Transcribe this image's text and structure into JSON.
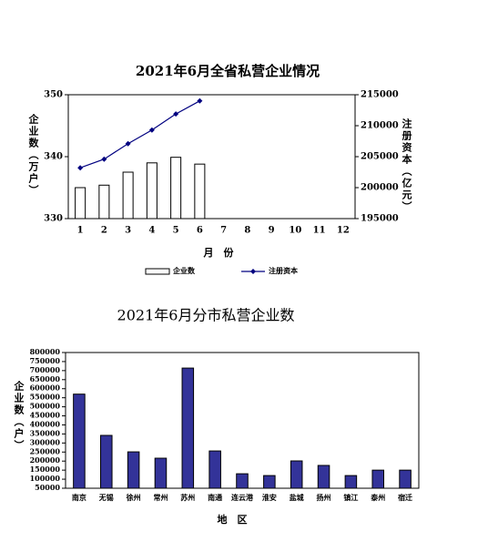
{
  "chart_data": [
    {
      "type": "combo",
      "title": "2021年6月全省私营企业情况",
      "categories": [
        "1",
        "2",
        "3",
        "4",
        "5",
        "6",
        "7",
        "8",
        "9",
        "10",
        "11",
        "12"
      ],
      "series": [
        {
          "name": "企业数",
          "type": "bar",
          "color": "#ffffff",
          "values": [
            335.0,
            335.4,
            337.5,
            339.0,
            339.9,
            338.8,
            null,
            null,
            null,
            null,
            null,
            null
          ]
        },
        {
          "name": "注册资本",
          "type": "line",
          "axis": "y2",
          "color": "#000080",
          "values": [
            203200,
            204600,
            207100,
            209300,
            211900,
            214000,
            null,
            null,
            null,
            null,
            null,
            null
          ]
        }
      ],
      "x_label": "月　份",
      "y_label": "企业数（万户）",
      "y2_label": "注册资本（亿元）",
      "ylim": [
        330,
        350
      ],
      "yticks": [
        330,
        340,
        350
      ],
      "y2lim": [
        195000,
        215000
      ],
      "y2ticks": [
        195000,
        200000,
        205000,
        210000,
        215000
      ],
      "legend": "bottom"
    },
    {
      "type": "bar",
      "title": "2021年6月分市私营企业数",
      "categories": [
        "南京",
        "无锡",
        "徐州",
        "常州",
        "苏州",
        "南通",
        "连云港",
        "淮安",
        "盐城",
        "扬州",
        "镇江",
        "泰州",
        "宿迁"
      ],
      "values": [
        570000,
        342000,
        251000,
        216000,
        714000,
        256000,
        130000,
        120000,
        201000,
        176000,
        120000,
        150000,
        150000
      ],
      "color": "#333399",
      "x_label": "地　区",
      "y_label": "企业数（户）",
      "ylim": [
        50000,
        800000
      ],
      "yticks": [
        50000,
        100000,
        150000,
        200000,
        250000,
        300000,
        350000,
        400000,
        450000,
        500000,
        550000,
        600000,
        650000,
        700000,
        750000,
        800000
      ]
    }
  ]
}
